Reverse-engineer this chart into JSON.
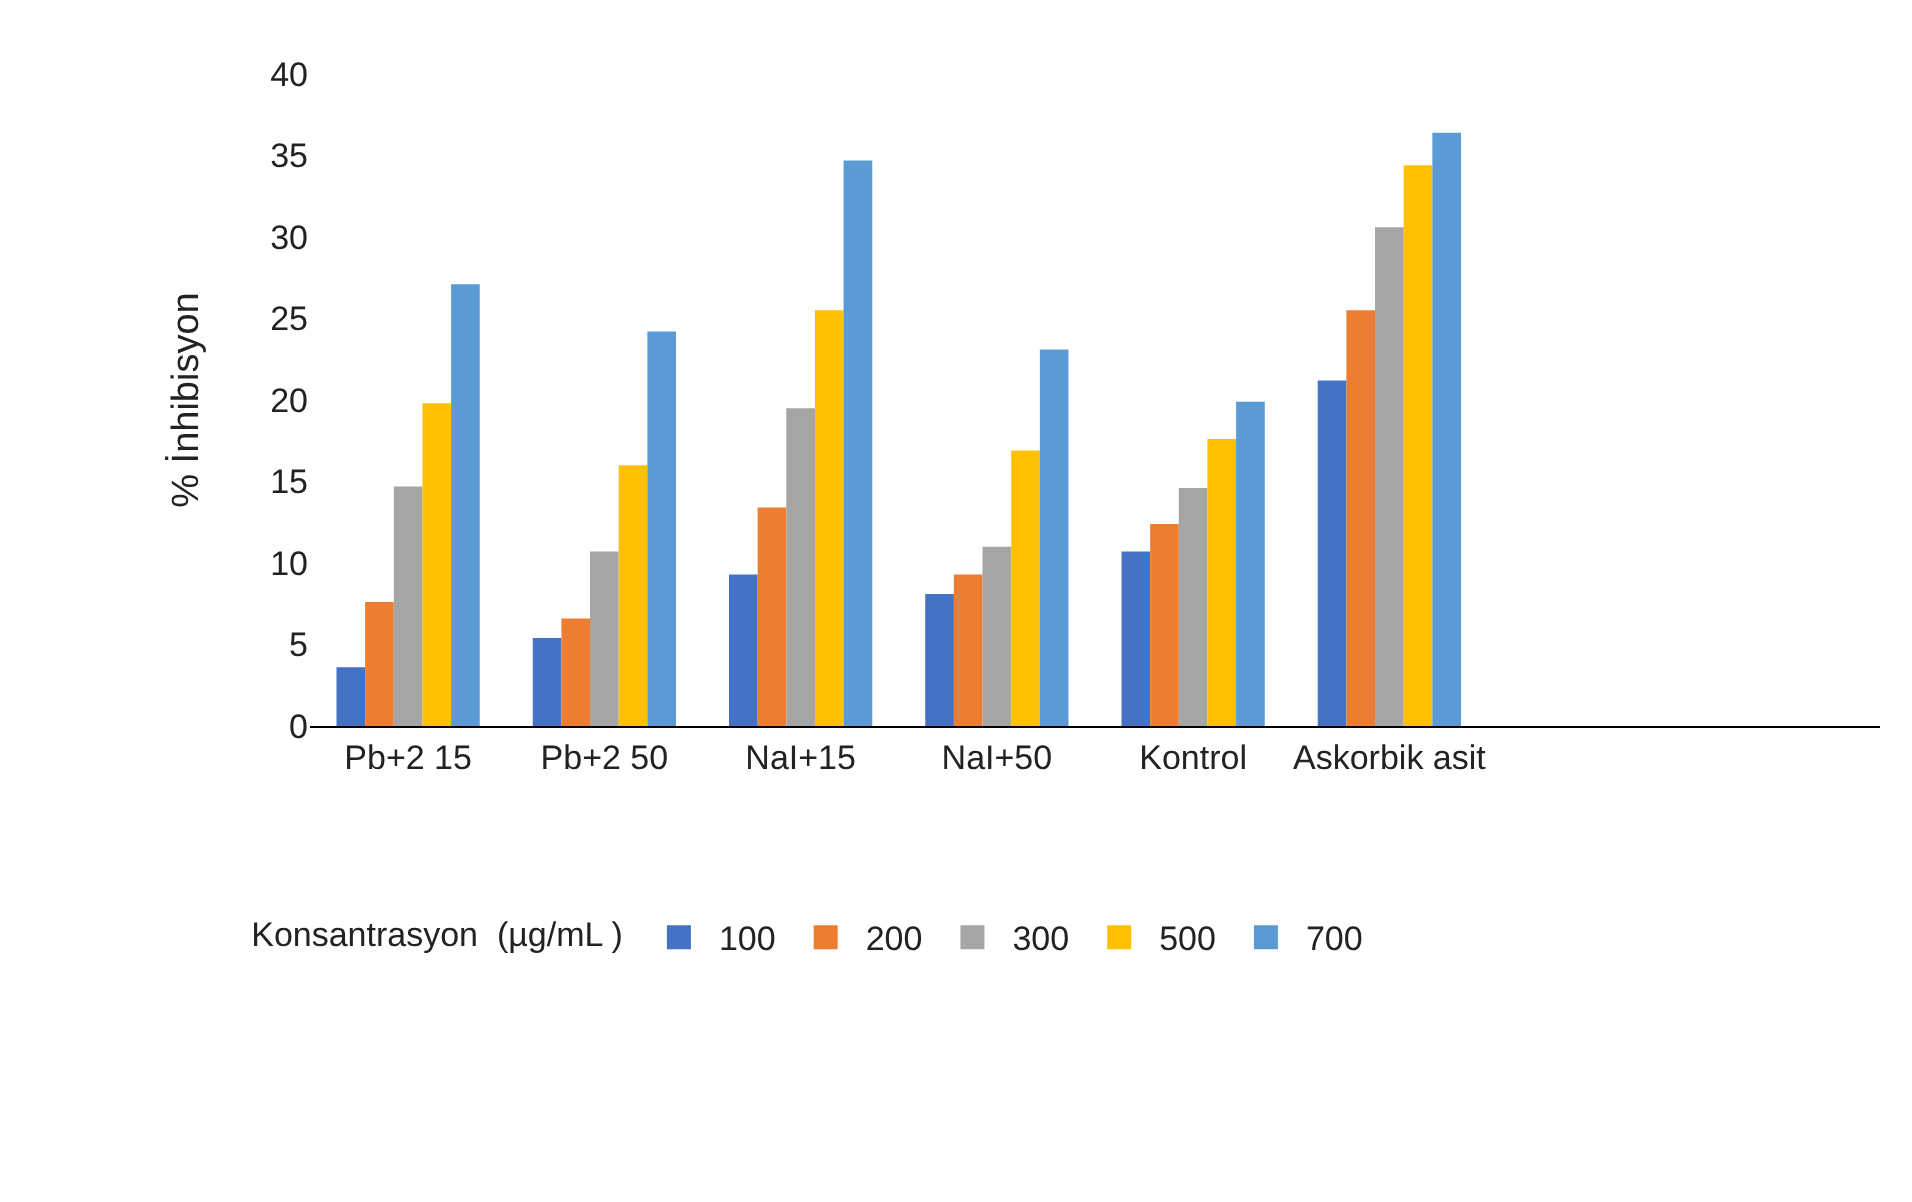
{
  "chart_data": {
    "type": "bar",
    "categories": [
      "Pb+2 15",
      "Pb+2 50",
      "NaI+15",
      "NaI+50",
      "Kontrol",
      "Askorbik asit",
      null,
      null
    ],
    "series": [
      {
        "name": "100",
        "color": "#4472c4",
        "values": [
          3.6,
          5.4,
          9.3,
          8.1,
          10.7,
          21.2,
          null,
          null
        ]
      },
      {
        "name": "200",
        "color": "#ed7d31",
        "values": [
          7.6,
          6.6,
          13.4,
          9.3,
          12.4,
          25.5,
          null,
          null
        ]
      },
      {
        "name": "300",
        "color": "#a5a5a5",
        "values": [
          14.7,
          10.7,
          19.5,
          11.0,
          14.6,
          30.6,
          null,
          null
        ]
      },
      {
        "name": "500",
        "color": "#ffc000",
        "values": [
          19.8,
          16.0,
          25.5,
          16.9,
          17.6,
          34.4,
          null,
          null
        ]
      },
      {
        "name": "700",
        "color": "#5b9bd5",
        "values": [
          27.1,
          24.2,
          34.7,
          23.1,
          19.9,
          36.4,
          null,
          null
        ]
      }
    ],
    "ylabel": "% İnhibisyon",
    "legend_title": "Konsantrasyon  (µg/mL )",
    "legend": "bottom",
    "ylim": [
      0,
      40
    ],
    "yticks": [
      0,
      5,
      10,
      15,
      20,
      25,
      30,
      35,
      40
    ],
    "grid": false
  }
}
